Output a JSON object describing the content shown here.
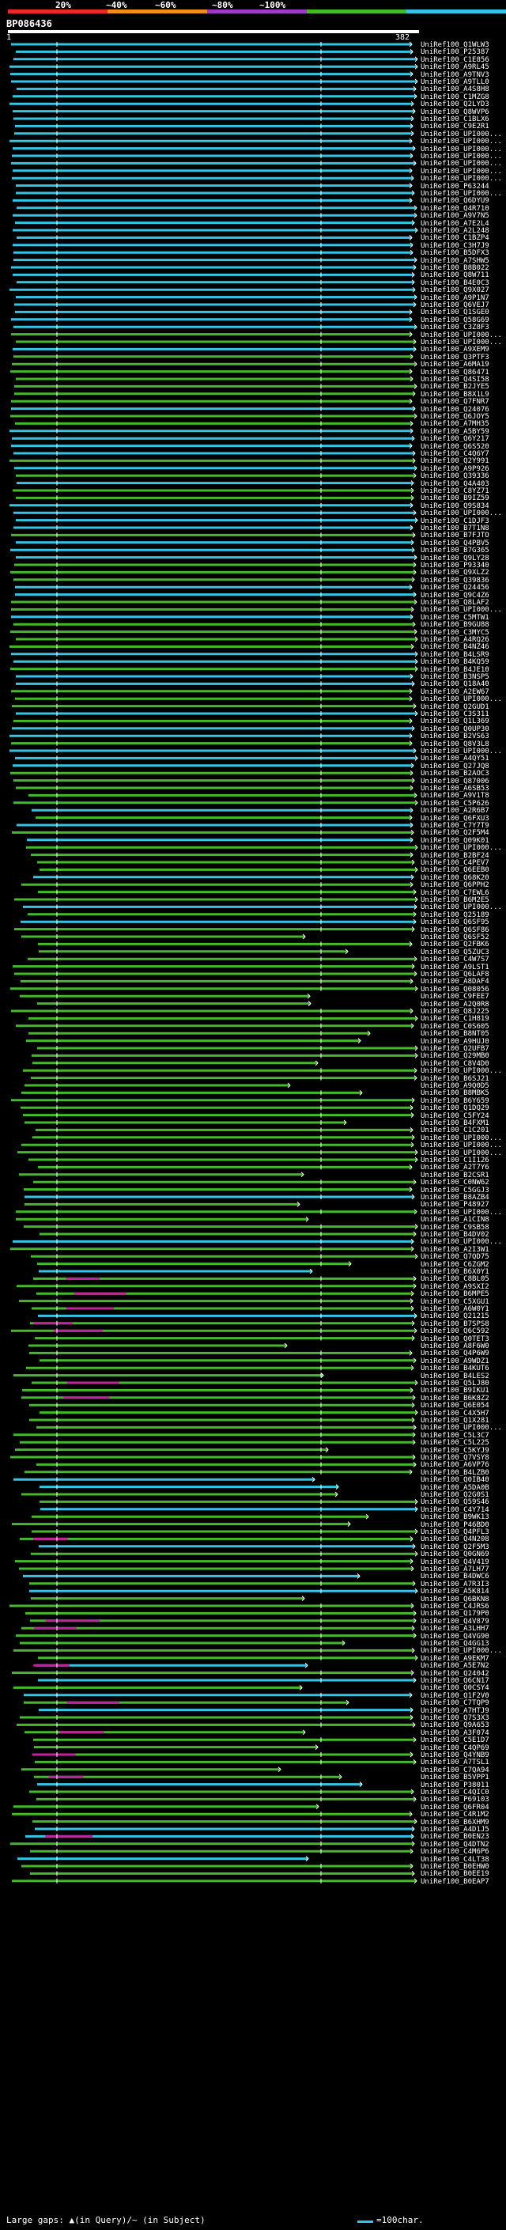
{
  "chart_data": {
    "type": "alignment-overview",
    "query_id": "BP086436",
    "query_start": "1",
    "query_end": "382",
    "query_length": 382,
    "identity_scale": [
      {
        "label": "20%",
        "color": "#e8282a"
      },
      {
        "label": "~40%",
        "color": "#f08e1a"
      },
      {
        "label": "~60%",
        "color": "#9a3cc6"
      },
      {
        "label": "~80%",
        "color": "#45b82c"
      },
      {
        "label": "~100%",
        "color": "#35c4e4"
      }
    ],
    "hits": [
      "UniRef100_Q1WLW3",
      "UniRef100_P25387",
      "UniRef100_C1E856",
      "UniRef100_A9RL45",
      "UniRef100_A9TNV3",
      "UniRef100_A9TLL0",
      "UniRef100_A4S8H8",
      "UniRef100_C1MZG8",
      "UniRef100_Q2LYD3",
      "UniRef100_Q8WVP6",
      "UniRef100_C1BLX6",
      "UniRef100_C9E2R1",
      "UniRef100_UPI000...",
      "UniRef100_UPI000...",
      "UniRef100_UPI000...",
      "UniRef100_UPI000...",
      "UniRef100_UPI000...",
      "UniRef100_UPI000...",
      "UniRef100_UPI000...",
      "UniRef100_P63244",
      "UniRef100_UPI000...",
      "UniRef100_Q6DYU9",
      "UniRef100_Q4R710",
      "UniRef100_A9V7N5",
      "UniRef100_A7E2L4",
      "UniRef100_A2L248",
      "UniRef100_C1BZP4",
      "UniRef100_C3H7J9",
      "UniRef100_B5DFX3",
      "UniRef100_A7SHW5",
      "UniRef100_B8B022",
      "UniRef100_Q8W711",
      "UniRef100_B4E0C3",
      "UniRef100_Q9X027",
      "UniRef100_A9P1N7",
      "UniRef100_Q6VEJ7",
      "UniRef100_Q1SGE0",
      "UniRef100_Q58G69",
      "UniRef100_C3Z8F3",
      "UniRef100_UPI000...",
      "UniRef100_UPI000...",
      "UniRef100_A9XEM9",
      "UniRef100_Q3PTF3",
      "UniRef100_A6MA19",
      "UniRef100_Q86471",
      "UniRef100_Q4SI58",
      "UniRef100_B2JYE5",
      "UniRef100_B8X1L9",
      "UniRef100_Q7FNR7",
      "UniRef100_Q24076",
      "UniRef100_Q6JOY5",
      "UniRef100_A7MH35",
      "UniRef100_A5BY59",
      "UniRef100_Q6Y217",
      "UniRef100_Q6S520",
      "UniRef100_C4Q6Y7",
      "UniRef100_Q2Y991",
      "UniRef100_A9P926",
      "UniRef100_Q39336",
      "UniRef100_Q4A403",
      "UniRef100_C8YZ71",
      "UniRef100_B9IZ59",
      "UniRef100_Q9S834",
      "UniRef100_UPI000...",
      "UniRef100_C1DJF3",
      "UniRef100_B7T1N8",
      "UniRef100_B7FJTO",
      "UniRef100_Q4PBV5",
      "UniRef100_B7G365",
      "UniRef100_Q9LY28",
      "UniRef100_P93340",
      "UniRef100_Q9XLZ2",
      "UniRef100_Q39836",
      "UniRef100_Q24456",
      "UniRef100_Q9C4Z6",
      "UniRef100_Q8LAF2",
      "UniRef100_UPI000...",
      "UniRef100_C5MTW1",
      "UniRef100_B9GU88",
      "UniRef100_C3MYC5",
      "UniRef100_A4RQ26",
      "UniRef100_B4NZ46",
      "UniRef100_B4LSR9",
      "UniRef100_B4KQ59",
      "UniRef100_B4JE10",
      "UniRef100_B3NSP5",
      "UniRef100_Q18A40",
      "UniRef100_A2EW67",
      "UniRef100_UPI000...",
      "UniRef100_Q2GUD1",
      "UniRef100_C3S311",
      "UniRef100_Q1L369",
      "UniRef100_Q0UP30",
      "UniRef100_B2VS63",
      "UniRef100_Q8V3L8",
      "UniRef100_UPI000...",
      "UniRef100_A4QY51",
      "UniRef100_Q27JQ8",
      "UniRef100_B2AOC3",
      "UniRef100_Q87006",
      "UniRef100_A6SB53",
      "UniRef100_A9V1T8",
      "UniRef100_C5P626",
      "UniRef100_A2R6B7",
      "UniRef100_Q6FXU3",
      "UniRef100_C7Y7T9",
      "UniRef100_Q2F5M4",
      "UniRef100_Q09K01",
      "UniRef100_UPI000...",
      "UniRef100_B2BF24",
      "UniRef100_C4PEV7",
      "UniRef100_Q6EEB0",
      "UniRef100_Q68K20",
      "UniRef100_Q6PPH2",
      "UniRef100_C7EWL6",
      "UniRef100_B6M2E5",
      "UniRef100_UPI000...",
      "UniRef100_Q25189",
      "UniRef100_Q6SF95",
      "UniRef100_Q6SF86",
      "UniRef100_Q6SF52",
      "UniRef100_Q2FBK6",
      "UniRef100_Q5ZUC3",
      "UniRef100_C4W7S7",
      "UniRef100_A9LST1",
      "UniRef100_Q6LAF8",
      "UniRef100_A8DAF4",
      "UniRef100_Q08056",
      "UniRef100_C9FEE7",
      "UniRef100_A2Q0R8",
      "UniRef100_Q8J225",
      "UniRef100_C1H819",
      "UniRef100_C0S605",
      "UniRef100_B8NT05",
      "UniRef100_A9HUJ0",
      "UniRef100_Q2UFB7",
      "UniRef100_Q29MB0",
      "UniRef100_C8V4D0",
      "UniRef100_UPI000...",
      "UniRef100_B6SJ21",
      "UniRef100_A9Q0D5",
      "UniRef100_B8MBK5",
      "UniRef100_B6Y659",
      "UniRef100_Q1DQ29",
      "UniRef100_C5FY24",
      "UniRef100_B4FXM1",
      "UniRef100_C1C201",
      "UniRef100_UPI000...",
      "UniRef100_UPI000...",
      "UniRef100_UPI000...",
      "UniRef100_C1I126",
      "UniRef100_A2T7Y6",
      "UniRef100_B2CSR1",
      "UniRef100_C0NW62",
      "UniRef100_C5GGJ3",
      "UniRef100_B8AZB4",
      "UniRef100_P48927",
      "UniRef100_UPI000...",
      "UniRef100_A1CIN8",
      "UniRef100_C9SB58",
      "UniRef100_B4DV02",
      "UniRef100_UPI000...",
      "UniRef100_A2I3W1",
      "UniRef100_Q7QD75",
      "UniRef100_C6ZGM2",
      "UniRef100_B6X0Y1",
      "UniRef100_C8BL05",
      "UniRef100_A9SXI2",
      "UniRef100_B6MPE5",
      "UniRef100_C5XGU1",
      "UniRef100_A6W0Y1",
      "UniRef100_Q21215",
      "UniRef100_B7SPS8",
      "UniRef100_Q6C592",
      "UniRef100_Q0TET3",
      "UniRef100_A8F6W0",
      "UniRef100_Q4P6W9",
      "UniRef100_A9WDZ1",
      "UniRef100_B4KUT6",
      "UniRef100_B4LES2",
      "UniRef100_Q5LJ80",
      "UniRef100_B9IKU1",
      "UniRef100_B6K8Z2",
      "UniRef100_Q6E054",
      "UniRef100_C4X5H7",
      "UniRef100_Q1X281",
      "UniRef100_UPI000...",
      "UniRef100_C5L3C7",
      "UniRef100_C5L225",
      "UniRef100_C5KYJ9",
      "UniRef100_Q7VSY8",
      "UniRef100_A6VP76",
      "UniRef100_B4LZB0",
      "UniRef100_Q0IB40",
      "UniRef100_A5DA0B",
      "UniRef100_Q2G0S1",
      "UniRef100_Q59S46",
      "UniRef100_C4Y714",
      "UniRef100_B9WK13",
      "UniRef100_P46BD0",
      "UniRef100_Q4PFL3",
      "UniRef100_Q4N208",
      "UniRef100_Q2F5M3",
      "UniRef100_Q0GN69",
      "UniRef100_Q4V419",
      "UniRef100_A7LH77",
      "UniRef100_B4DWC6",
      "UniRef100_A7R3I3",
      "UniRef100_A5K814",
      "UniRef100_Q6BKN8",
      "UniRef100_C4JRS6",
      "UniRef100_Q179P0",
      "UniRef100_Q4V879",
      "UniRef100_A3LHH7",
      "UniRef100_Q4VG90",
      "UniRef100_Q4GG13",
      "UniRef100_UPI000...",
      "UniRef100_A9EKM7",
      "UniRef100_A5E7N2",
      "UniRef100_Q24042",
      "UniRef100_Q6CN17",
      "UniRef100_Q0CSY4",
      "UniRef100_Q1F2V0",
      "UniRef100_C7TQP9",
      "UniRef100_A7HTJ9",
      "UniRef100_Q7S3X3",
      "UniRef100_Q9A653",
      "UniRef100_A3F074",
      "UniRef100_C5E1D7",
      "UniRef100_C4QP69",
      "UniRef100_Q4YNB9",
      "UniRef100_A7TSL1",
      "UniRef100_C7QA94",
      "UniRef100_B5VPP1",
      "UniRef100_P38011",
      "UniRef100_C4QIC0",
      "UniRef100_P69103",
      "UniRef100_Q6FR04",
      "UniRef100_C4R1M2",
      "UniRef100_B6XHM9",
      "UniRef100_A4D1J5",
      "UniRef100_B0EN23",
      "UniRef100_Q4DTN2",
      "UniRef100_C4M6P6",
      "UniRef100_C4LT38",
      "UniRef100_B0EHW0",
      "UniRef100_B0EE19",
      "UniRef100_B0EAP7"
    ],
    "xlabel": "",
    "ylabel": ""
  },
  "footer": {
    "gap_note": "Large gaps: ▲(in Query)/~ (in Subject)",
    "legend_text": "=100char."
  },
  "colors": {
    "high": "#35c4e4",
    "mid": "#45b82c",
    "low": "#9a3cc6",
    "marker": "#ffffff",
    "subject_gap": "#c0249a"
  }
}
